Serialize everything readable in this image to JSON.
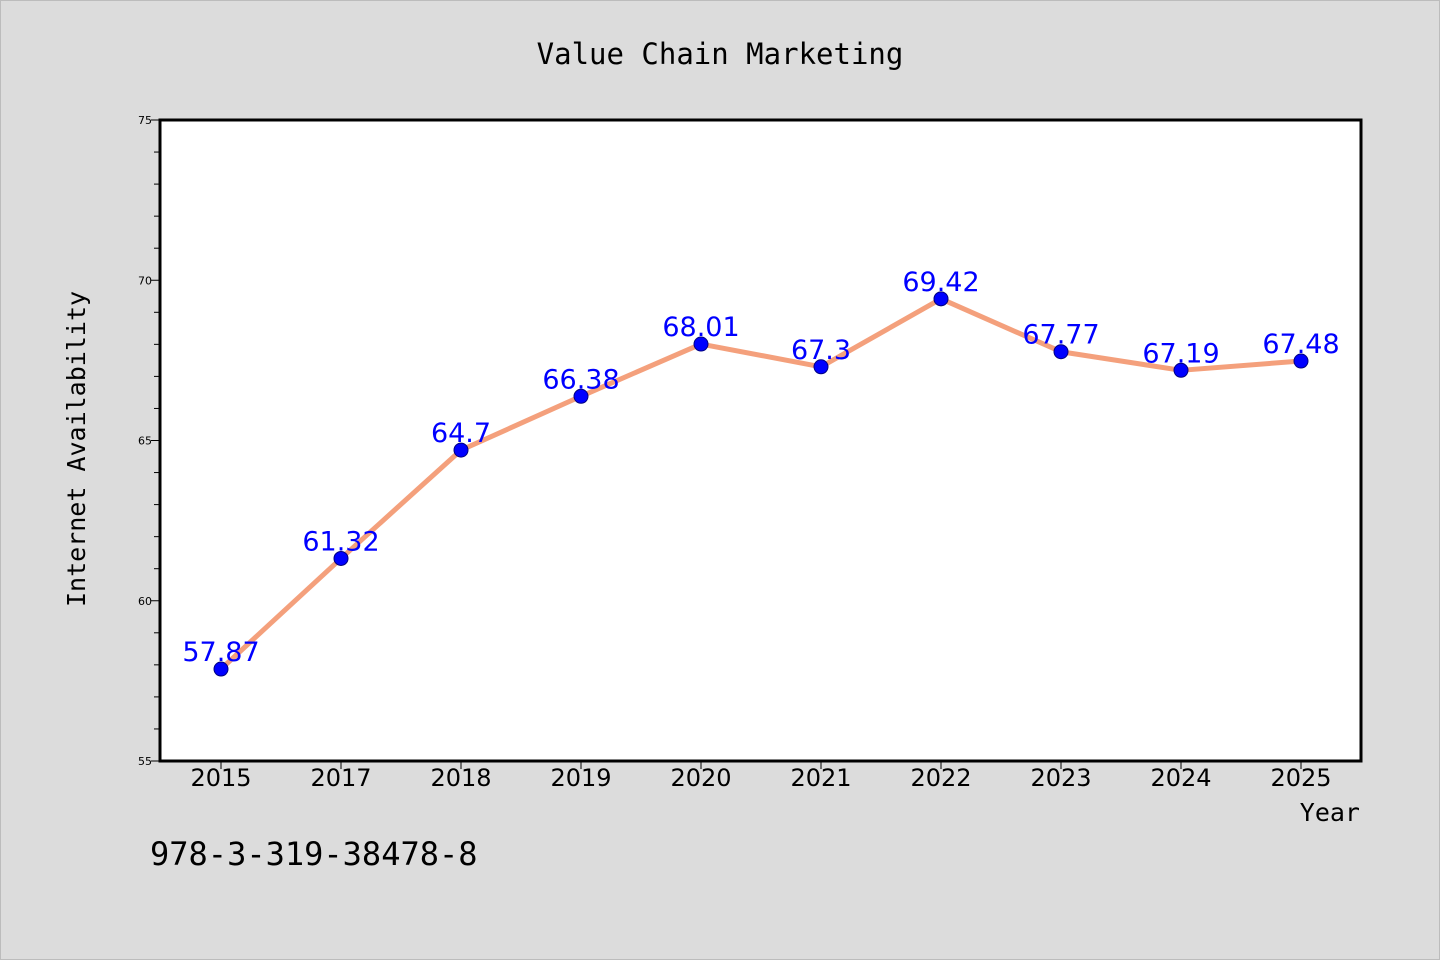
{
  "chart_data": {
    "type": "line",
    "title": "Value Chain Marketing",
    "xlabel": "Year",
    "ylabel": "Internet Availability",
    "categories": [
      "2015",
      "2017",
      "2018",
      "2019",
      "2020",
      "2021",
      "2022",
      "2023",
      "2024",
      "2025"
    ],
    "series": [
      {
        "values": [
          57.87,
          61.32,
          64.7,
          66.38,
          68.01,
          67.3,
          69.42,
          67.77,
          67.19,
          67.48
        ],
        "labels": [
          "57.87",
          "61.32",
          "64.7",
          "66.38",
          "68.01",
          "67.3",
          "69.42",
          "67.77",
          "67.19",
          "67.48"
        ],
        "line_color": "#f4a07c",
        "marker_color": "#0000ff",
        "label_color": "#0000ff"
      }
    ],
    "ylim": [
      55,
      75
    ],
    "yticks": [
      55,
      60,
      65,
      70,
      75
    ],
    "ytick_labels": [
      "55",
      "60",
      "65",
      "70",
      "75"
    ],
    "grid": false,
    "legend": "none"
  },
  "annotations": {
    "footnote": "978-3-319-38478-8"
  },
  "colors": {
    "figure_background": "#dcdcdc",
    "plot_background": "#ffffff",
    "frame": "#000000"
  }
}
